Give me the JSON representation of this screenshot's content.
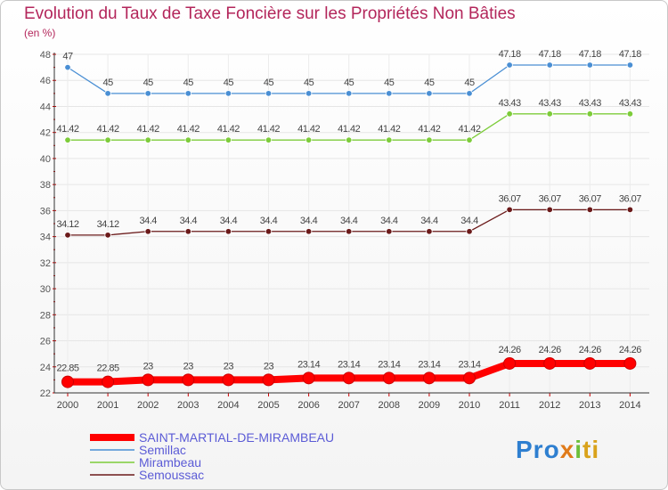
{
  "chart_data": {
    "type": "line",
    "title": "Evolution du Taux de Taxe Foncière sur les Propriétés Non Bâties",
    "ylabel": "(en %)",
    "xlabel": "",
    "ylim": [
      22,
      48
    ],
    "yticks": [
      22,
      24,
      26,
      28,
      30,
      32,
      34,
      36,
      38,
      40,
      42,
      44,
      46,
      48
    ],
    "categories": [
      "2000",
      "2001",
      "2002",
      "2003",
      "2004",
      "2005",
      "2006",
      "2007",
      "2008",
      "2009",
      "2010",
      "2011",
      "2012",
      "2013",
      "2014"
    ],
    "series": [
      {
        "name": "SAINT-MARTIAL-DE-MIRAMBEAU",
        "color": "#ff0000",
        "values": [
          22.85,
          22.85,
          23,
          23,
          23,
          23,
          23.14,
          23.14,
          23.14,
          23.14,
          23.14,
          24.26,
          24.26,
          24.26,
          24.26
        ]
      },
      {
        "name": "Semillac",
        "color": "#4a8fd4",
        "values": [
          47,
          45,
          45,
          45,
          45,
          45,
          45,
          45,
          45,
          45,
          45,
          47.18,
          47.18,
          47.18,
          47.18
        ]
      },
      {
        "name": "Mirambeau",
        "color": "#7dcc3a",
        "values": [
          41.42,
          41.42,
          41.42,
          41.42,
          41.42,
          41.42,
          41.42,
          41.42,
          41.42,
          41.42,
          41.42,
          43.43,
          43.43,
          43.43,
          43.43
        ]
      },
      {
        "name": "Semoussac",
        "color": "#6b1a1a",
        "values": [
          34.12,
          34.12,
          34.4,
          34.4,
          34.4,
          34.4,
          34.4,
          34.4,
          34.4,
          34.4,
          34.4,
          36.07,
          36.07,
          36.07,
          36.07
        ]
      }
    ]
  },
  "logo": {
    "part1": "Pro",
    "part2": "x",
    "part3": "i",
    "part4": "ti"
  }
}
